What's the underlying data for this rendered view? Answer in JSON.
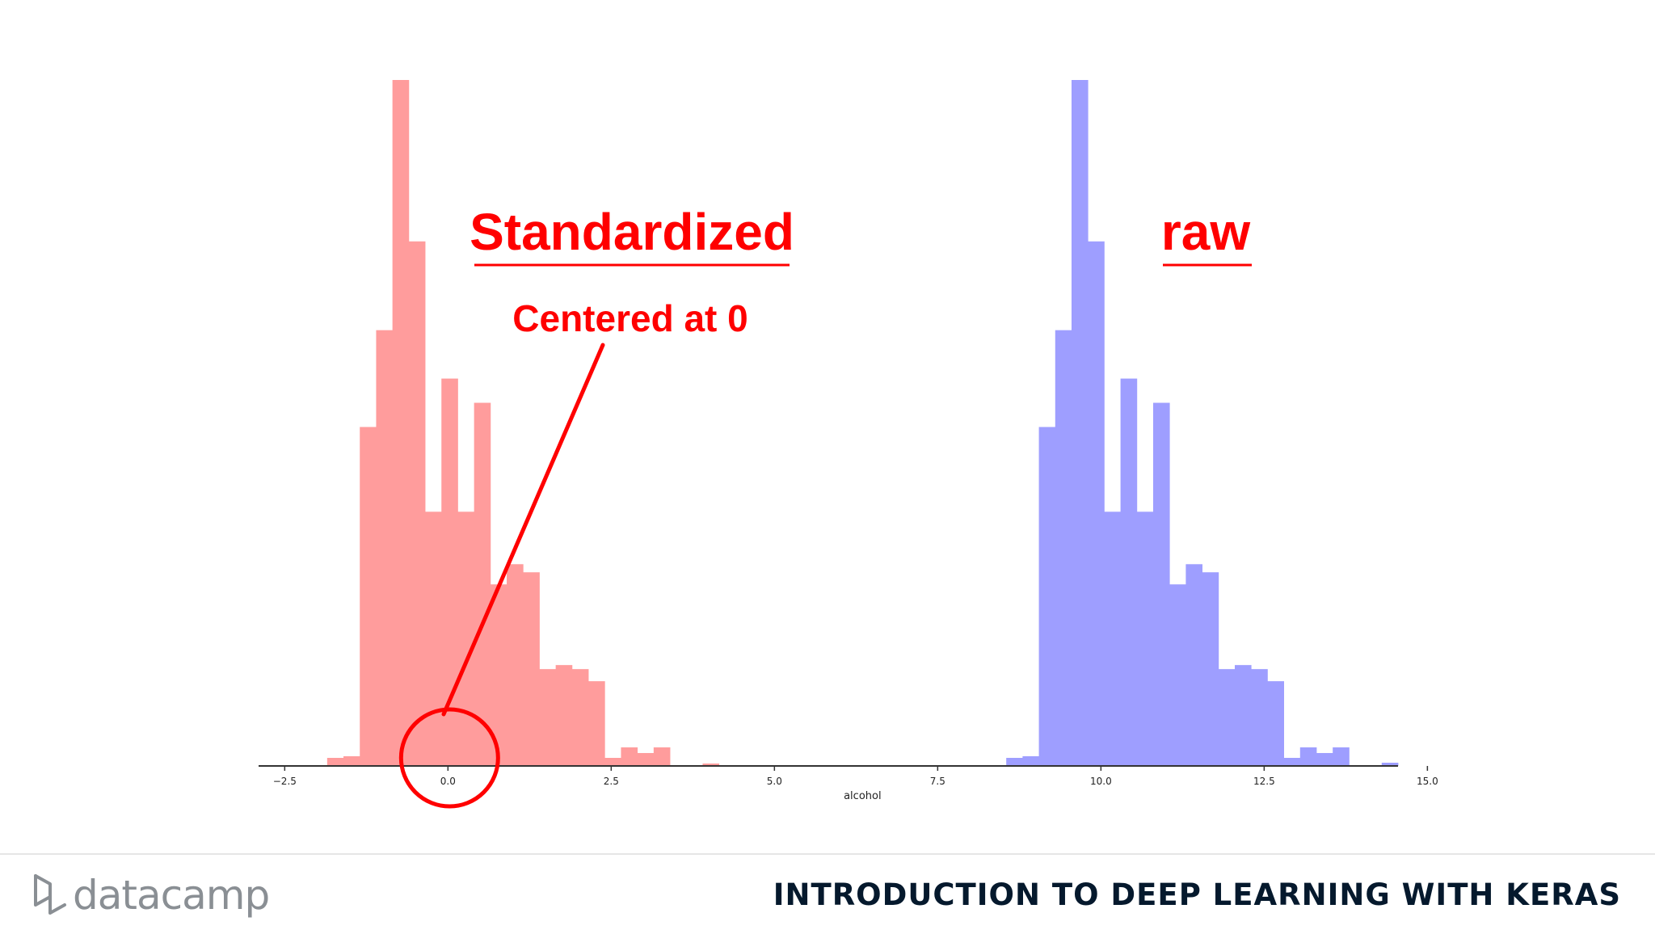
{
  "chart_data": {
    "type": "bar",
    "xlabel": "alcohol",
    "ylabel": "",
    "xlim": [
      -2.9,
      14.55
    ],
    "ylim": [
      0,
      85
    ],
    "x_ticks": [
      -2.5,
      0.0,
      2.5,
      5.0,
      7.5,
      10.0,
      12.5,
      15.0
    ],
    "x_tick_labels": [
      "−2.5",
      "0.0",
      "2.5",
      "5.0",
      "7.5",
      "10.0",
      "12.5",
      "15.0"
    ],
    "bin_width": 0.25,
    "grid": false,
    "series": [
      {
        "name": "Standardized",
        "color": "#ff9c9c",
        "bins": [
          {
            "x": -1.85,
            "count": 1
          },
          {
            "x": -1.6,
            "count": 1.2
          },
          {
            "x": -1.35,
            "count": 42
          },
          {
            "x": -1.1,
            "count": 54
          },
          {
            "x": -0.85,
            "count": 85
          },
          {
            "x": -0.6,
            "count": 65
          },
          {
            "x": -0.35,
            "count": 31.5
          },
          {
            "x": -0.1,
            "count": 48
          },
          {
            "x": 0.15,
            "count": 31.5
          },
          {
            "x": 0.4,
            "count": 45
          },
          {
            "x": 0.65,
            "count": 22.5
          },
          {
            "x": 0.9,
            "count": 25
          },
          {
            "x": 1.15,
            "count": 24
          },
          {
            "x": 1.4,
            "count": 12
          },
          {
            "x": 1.65,
            "count": 12.5
          },
          {
            "x": 1.9,
            "count": 12
          },
          {
            "x": 2.15,
            "count": 10.5
          },
          {
            "x": 2.4,
            "count": 1
          },
          {
            "x": 2.65,
            "count": 2.3
          },
          {
            "x": 2.9,
            "count": 1.6
          },
          {
            "x": 3.15,
            "count": 2.3
          },
          {
            "x": 3.9,
            "count": 0.3
          }
        ]
      },
      {
        "name": "raw",
        "color": "#9e9eff",
        "bins": [
          {
            "x": 8.55,
            "count": 1
          },
          {
            "x": 8.8,
            "count": 1.2
          },
          {
            "x": 9.05,
            "count": 42
          },
          {
            "x": 9.3,
            "count": 54
          },
          {
            "x": 9.55,
            "count": 85
          },
          {
            "x": 9.8,
            "count": 65
          },
          {
            "x": 10.05,
            "count": 31.5
          },
          {
            "x": 10.3,
            "count": 48
          },
          {
            "x": 10.55,
            "count": 31.5
          },
          {
            "x": 10.8,
            "count": 45
          },
          {
            "x": 11.05,
            "count": 22.5
          },
          {
            "x": 11.3,
            "count": 25
          },
          {
            "x": 11.55,
            "count": 24
          },
          {
            "x": 11.8,
            "count": 12
          },
          {
            "x": 12.05,
            "count": 12.5
          },
          {
            "x": 12.3,
            "count": 12
          },
          {
            "x": 12.55,
            "count": 10.5
          },
          {
            "x": 12.8,
            "count": 1
          },
          {
            "x": 13.05,
            "count": 2.3
          },
          {
            "x": 13.3,
            "count": 1.6
          },
          {
            "x": 13.55,
            "count": 2.3
          },
          {
            "x": 14.3,
            "count": 0.4
          }
        ]
      }
    ],
    "annotations": {
      "standardized_title": "Standardized",
      "raw_title": "raw",
      "centered_note": "Centered at 0",
      "circle_at_x": 0.0,
      "color": "#ff0000"
    }
  },
  "footer": {
    "brand": "datacamp",
    "course_title": "INTRODUCTION TO DEEP LEARNING WITH KERAS"
  }
}
